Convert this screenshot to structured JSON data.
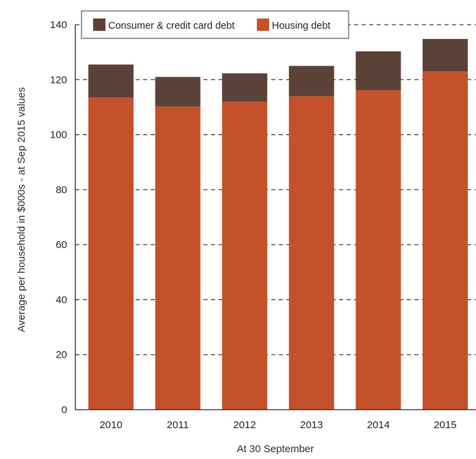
{
  "chart_data": {
    "type": "bar",
    "stacked": true,
    "categories": [
      "2010",
      "2011",
      "2012",
      "2013",
      "2014",
      "2015"
    ],
    "series": [
      {
        "name": "Housing debt",
        "color": "#c4512a",
        "values": [
          113.5,
          110.2,
          112.0,
          114.0,
          116.2,
          123.0
        ]
      },
      {
        "name": "Consumer & credit card debt",
        "color": "#5b4239",
        "values": [
          12.0,
          10.8,
          10.3,
          11.0,
          14.1,
          11.8
        ]
      }
    ],
    "xlabel": "At 30 September",
    "ylabel": "Average per household in $000s - at Sep 2015 values",
    "ylim": [
      0,
      140
    ],
    "yticks": [
      0,
      20,
      40,
      60,
      80,
      100,
      120,
      140
    ],
    "grid": true,
    "legend": {
      "placement": "top-left",
      "order": [
        "Consumer & credit card debt",
        "Housing debt"
      ]
    }
  }
}
